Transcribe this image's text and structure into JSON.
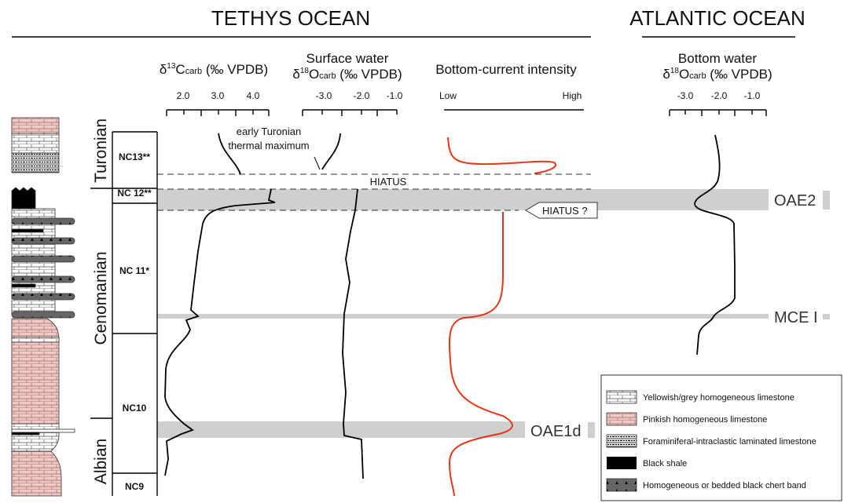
{
  "header": {
    "left_title": "TETHYS OCEAN",
    "right_title": "ATLANTIC OCEAN"
  },
  "columns": [
    {
      "title_parts": [
        "δ",
        "13",
        "C",
        "carb",
        " (‰ VPDB)"
      ],
      "ticks": [
        "2.0",
        "3.0",
        "4.0"
      ]
    },
    {
      "title_line1": "Surface water",
      "title_parts": [
        "δ",
        "18",
        "O",
        "carb",
        " (‰ VPDB)"
      ],
      "ticks": [
        "-3.0",
        "-2.0",
        "-1.0"
      ]
    },
    {
      "title": "Bottom-current intensity",
      "ticks": [
        "Low",
        "High"
      ]
    },
    {
      "title_line1": "Bottom water",
      "title_parts": [
        "δ",
        "18",
        "O",
        "carb",
        " (‰ VPDB)"
      ],
      "ticks": [
        "-3.0",
        "-2.0",
        "-1.0"
      ]
    }
  ],
  "stages": [
    "Turonian",
    "Cenomanian",
    "Albian"
  ],
  "zones": [
    "NC13**",
    "NC 12**",
    "NC 11*",
    "NC10",
    "NC9"
  ],
  "events": [
    "OAE2",
    "MCE I",
    "OAE1d"
  ],
  "annotations": {
    "hiatus": "HIATUS",
    "hiatus_query": "HIATUS ?",
    "thermal": [
      "early Turonian",
      "thermal maximum"
    ]
  },
  "legend": [
    "Yellowish/grey homogeneous limestone",
    "Pinkish homogeneous limestone",
    "Foraminiferal-intraclastic laminated limestone",
    "Black shale",
    "Homogeneous or bedded black chert band"
  ]
}
